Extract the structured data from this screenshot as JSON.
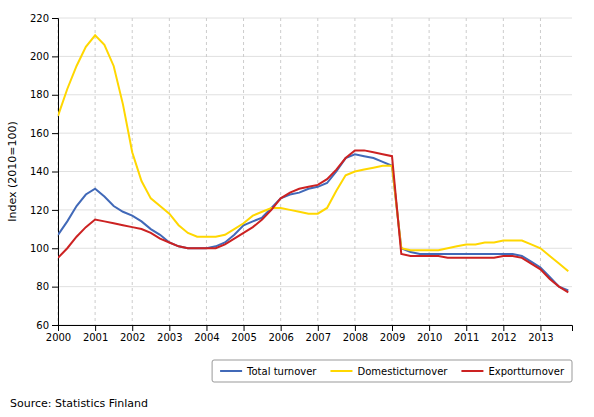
{
  "chart_data": {
    "type": "line",
    "y_label": "Index (2010=100)",
    "annotations": [
      "Source: Statistics Finland"
    ],
    "x": [
      2000,
      2000.25,
      2000.5,
      2000.75,
      2001,
      2001.25,
      2001.5,
      2001.75,
      2002,
      2002.25,
      2002.5,
      2002.75,
      2003,
      2003.25,
      2003.5,
      2003.75,
      2004,
      2004.25,
      2004.5,
      2004.75,
      2005,
      2005.25,
      2005.5,
      2005.75,
      2006,
      2006.25,
      2006.5,
      2006.75,
      2007,
      2007.25,
      2007.5,
      2007.75,
      2008,
      2008.25,
      2008.5,
      2008.75,
      2009,
      2009.25,
      2009.5,
      2009.75,
      2010,
      2010.25,
      2010.5,
      2010.75,
      2011,
      2011.25,
      2011.5,
      2011.75,
      2012,
      2012.25,
      2012.5,
      2012.75,
      2013,
      2013.25,
      2013.5,
      2013.75
    ],
    "series": [
      {
        "name": "Total turnover",
        "color": "#4169b8",
        "values": [
          107,
          114,
          122,
          128,
          131,
          127,
          122,
          119,
          117,
          114,
          110,
          107,
          103,
          101,
          100,
          100,
          100,
          101,
          103,
          107,
          112,
          114,
          116,
          121,
          126,
          128,
          129,
          131,
          132,
          134,
          140,
          147,
          149,
          148,
          147,
          145,
          143,
          100,
          98,
          97,
          97,
          97,
          97,
          97,
          97,
          97,
          97,
          97,
          97,
          97,
          96,
          93,
          90,
          85,
          80,
          78
        ]
      },
      {
        "name": "Domesticturnover",
        "color": "#ffd700",
        "values": [
          169,
          183,
          195,
          205,
          211,
          206,
          195,
          175,
          150,
          135,
          126,
          122,
          118,
          112,
          108,
          106,
          106,
          106,
          107,
          110,
          113,
          117,
          119,
          121,
          121,
          120,
          119,
          118,
          118,
          121,
          130,
          138,
          140,
          141,
          142,
          143,
          143,
          100,
          99,
          99,
          99,
          99,
          100,
          101,
          102,
          102,
          103,
          103,
          104,
          104,
          104,
          102,
          100,
          96,
          92,
          88
        ]
      },
      {
        "name": "Exportturnover",
        "color": "#cc2222",
        "values": [
          95,
          100,
          106,
          111,
          115,
          114,
          113,
          112,
          111,
          110,
          108,
          105,
          103,
          101,
          100,
          100,
          100,
          100,
          102,
          105,
          108,
          111,
          115,
          120,
          126,
          129,
          131,
          132,
          133,
          136,
          141,
          147,
          151,
          151,
          150,
          149,
          148,
          97,
          96,
          96,
          96,
          96,
          95,
          95,
          95,
          95,
          95,
          95,
          96,
          96,
          95,
          92,
          89,
          84,
          80,
          77
        ]
      }
    ],
    "xlim": [
      2000,
      2013.85
    ],
    "xticks": [
      2000,
      2001,
      2002,
      2003,
      2004,
      2005,
      2006,
      2007,
      2008,
      2009,
      2010,
      2011,
      2012,
      2013
    ],
    "ylim": [
      60,
      220
    ],
    "yticks": [
      60,
      80,
      100,
      120,
      140,
      160,
      180,
      200,
      220
    ],
    "grid": true,
    "legend": "lower right"
  }
}
